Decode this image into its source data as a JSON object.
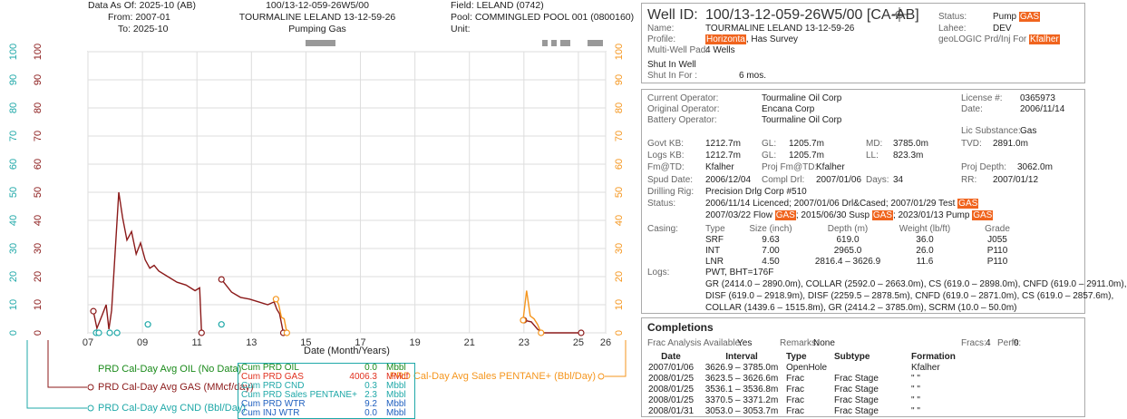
{
  "header": {
    "data_as_of": "Data As Of: 2025-10 (AB)",
    "from": "From: 2007-01",
    "to": "To: 2025-10",
    "uwi": "100/13-12-059-26W5/00",
    "well_name": "TOURMALINE LELAND 13-12-59-26",
    "status": "Pumping Gas",
    "field": "Field: LELAND (0742)",
    "pool": "Pool: COMMINGLED POOL 001 (0800160)",
    "unit": "Unit:"
  },
  "chart": {
    "type": "line",
    "xlabel": "Date (Month/Years)",
    "xlim": [
      2007,
      2026
    ],
    "xticks": [
      {
        "value": 2007,
        "label": "07"
      },
      {
        "value": 2009,
        "label": "09"
      },
      {
        "value": 2011,
        "label": "11"
      },
      {
        "value": 2013,
        "label": "13"
      },
      {
        "value": 2015,
        "label": "15"
      },
      {
        "value": 2017,
        "label": "17"
      },
      {
        "value": 2019,
        "label": "19"
      },
      {
        "value": 2021,
        "label": "21"
      },
      {
        "value": 2023,
        "label": "23"
      },
      {
        "value": 2025,
        "label": "25"
      },
      {
        "value": 2026,
        "label": "26"
      }
    ],
    "grid": true,
    "axes": [
      {
        "name": "cnd",
        "color": "#1fa8a8",
        "ylim": [
          0,
          100
        ],
        "yticks": [
          0,
          10,
          20,
          30,
          40,
          50,
          60,
          70,
          80,
          90,
          100
        ]
      },
      {
        "name": "gas",
        "color": "#8b1a1a",
        "ylim": [
          0,
          100
        ],
        "yticks": [
          0,
          10,
          20,
          30,
          40,
          50,
          60,
          70,
          80,
          90,
          100
        ]
      },
      {
        "name": "pentane",
        "color": "#f5961e",
        "ylim": [
          0,
          100
        ],
        "yticks": [
          0,
          10,
          20,
          30,
          40,
          50,
          60,
          70,
          80,
          90,
          100
        ]
      }
    ],
    "series": [
      {
        "name": "PRD Cal-Day Avg OIL (No Data)",
        "color": "#1a8a1a",
        "axis": "gas",
        "x": [],
        "values": []
      },
      {
        "name": "PRD Cal-Day Avg GAS (MMcf/day)",
        "color": "#8b1a1a",
        "axis": "gas",
        "x": [
          2007.2,
          2007.33,
          2007.53,
          2007.67,
          2007.77,
          2007.87,
          2008.13,
          2008.27,
          2008.43,
          2008.6,
          2008.77,
          2008.93,
          2009.1,
          2009.27,
          2009.43,
          2009.6,
          2009.93,
          2010.27,
          2010.6,
          2010.93,
          2011.1,
          2011.17,
          2011.5,
          2011.9,
          2012.27,
          2012.6,
          2012.93,
          2013.27,
          2013.6,
          2013.83,
          2013.93,
          2014.03,
          2014.17,
          2018,
          2023.0,
          2023.27,
          2023.5,
          2023.67,
          2023.93,
          2024.17,
          2025.1
        ],
        "values": [
          7.7,
          1.6,
          6.5,
          10,
          1.3,
          8,
          50,
          41,
          33,
          36,
          28,
          32,
          26,
          23,
          24,
          22,
          20,
          18,
          17,
          15,
          16,
          0,
          null,
          19,
          14.5,
          12.6,
          12,
          11,
          10,
          11,
          8.4,
          6.8,
          0,
          null,
          4.5,
          3.9,
          1.3,
          0,
          0,
          0,
          0
        ]
      },
      {
        "name": "PRD Cal-Day Avg CND (Bbl/Day)",
        "color": "#1fa8a8",
        "axis": "cnd",
        "line": false,
        "x": [
          2007.3,
          2007.4,
          2007.8,
          2008.07,
          2009.2,
          2011.9
        ],
        "values": [
          0,
          0,
          0,
          0,
          3,
          3
        ]
      },
      {
        "name": "PRD Cal-Day Avg Sales PENTANE+ (Bbl/Day)",
        "color": "#f5961e",
        "axis": "pentane",
        "x": [
          2013.9,
          2014.0,
          2014.1,
          2014.2,
          2014.3,
          2018,
          2022.97,
          2023.1,
          2023.23,
          2023.37,
          2023.5,
          2023.63
        ],
        "values": [
          12,
          10,
          5.5,
          5,
          0,
          null,
          4.5,
          15,
          6,
          5,
          3,
          0
        ]
      }
    ]
  },
  "cumulative": [
    {
      "label": "Cum PRD OIL",
      "value": "0.0",
      "unit": "Mbbl",
      "color": "#1a8a1a"
    },
    {
      "label": "Cum PRD GAS",
      "value": "4006.3",
      "unit": "MMcf",
      "color": "#e0301e"
    },
    {
      "label": "Cum PRD CND",
      "value": "0.3",
      "unit": "Mbbl",
      "color": "#1fa8a8"
    },
    {
      "label": "Cum PRD Sales PENTANE+",
      "value": "2.3",
      "unit": "Mbbl",
      "color": "#1fa8a8"
    },
    {
      "label": "Cum PRD WTR",
      "value": "9.2",
      "unit": "Mbbl",
      "color": "#1f5fbf"
    },
    {
      "label": "Cum INJ WTR",
      "value": "0.0",
      "unit": "Mbbl",
      "color": "#1f5fbf"
    }
  ],
  "well": {
    "id_label": "Well ID:",
    "id": "100/13-12-059-26W5/00 [CA-AB]",
    "name_label": "Name:",
    "name": "TOURMALINE LELAND 13-12-59-26",
    "profile_label": "Profile:",
    "profile": [
      {
        "text": "Horizonta",
        "highlight": true
      },
      {
        "text": ", Has Survey"
      }
    ],
    "pad_label": "Multi-Well Pad:",
    "pad": "4 Wells",
    "shut_in": "Shut In Well",
    "shut_in_for_label": "Shut In For :",
    "shut_in_for": "6 mos.",
    "status_label": "Status:",
    "status": [
      {
        "text": "Pump "
      },
      {
        "text": "GAS",
        "highlight": true
      }
    ],
    "lahee_label": "Lahee:",
    "lahee": "DEV",
    "prd_for": [
      {
        "text": "geoLOGIC Prd/Inj For "
      },
      {
        "text": "Kfalher",
        "highlight": true
      }
    ]
  },
  "details": {
    "current_operator": {
      "label": "Current Operator:",
      "value": "Tourmaline Oil Corp"
    },
    "original_operator": {
      "label": "Original Operator:",
      "value": "Encana Corp"
    },
    "battery_operator": {
      "label": "Battery Operator:",
      "value": "Tourmaline Oil Corp"
    },
    "license": {
      "label": "License #:",
      "value": "0365973"
    },
    "date": {
      "label": "Date:",
      "value": "2006/11/14"
    },
    "lic_substance": {
      "label": "Lic Substance:",
      "value": "Gas"
    },
    "govt_kb": {
      "label": "Govt KB:",
      "value": "1212.7m"
    },
    "gl_1": {
      "label": "GL:",
      "value": "1205.7m"
    },
    "md": {
      "label": "MD:",
      "value": "3785.0m"
    },
    "tvd": {
      "label": "TVD:",
      "value": "2891.0m"
    },
    "logs_kb": {
      "label": "Logs KB:",
      "value": "1212.7m"
    },
    "gl_2": {
      "label": "GL:",
      "value": "1205.7m"
    },
    "ll": {
      "label": "LL:",
      "value": "823.3m"
    },
    "fm_td": {
      "label": "Fm@TD:",
      "value": "Kfalher"
    },
    "proj_fm_td": {
      "label": "Proj Fm@TD:",
      "value": "Kfalher"
    },
    "proj_depth": {
      "label": "Proj Depth:",
      "value": "3062.0m"
    },
    "spud_date": {
      "label": "Spud Date:",
      "value": "2006/12/04"
    },
    "compl_drl": {
      "label": "Compl Drl:",
      "value": "2007/01/06"
    },
    "days": {
      "label": "Days:",
      "value": "34"
    },
    "rr": {
      "label": "RR:",
      "value": "2007/01/12"
    },
    "drilling_rig": {
      "label": "Drilling Rig:",
      "value": "Precision Drlg Corp #510"
    },
    "status": {
      "label": "Status:",
      "lines": [
        [
          {
            "text": "2006/11/14 Licenced; 2007/01/06 Drl&Cased; 2007/01/29 Test "
          },
          {
            "text": "GAS",
            "highlight": true
          }
        ],
        [
          {
            "text": "2007/03/22 Flow "
          },
          {
            "text": "GAS",
            "highlight": true
          },
          {
            "text": "; 2015/06/30 Susp "
          },
          {
            "text": "GAS",
            "highlight": true
          },
          {
            "text": "; 2023/01/13 Pump "
          },
          {
            "text": "GAS",
            "highlight": true
          }
        ]
      ]
    },
    "casing": {
      "label": "Casing:",
      "header": [
        "Type",
        "Size (inch)",
        "Depth (m)",
        "Weight (lb/ft)",
        "Grade"
      ],
      "rows": [
        [
          "SRF",
          "9.63",
          "619.0",
          "36.0",
          "J055"
        ],
        [
          "INT",
          "7.00",
          "2965.0",
          "26.0",
          "P110"
        ],
        [
          "LNR",
          "4.50",
          "2816.4 – 3626.9",
          "11.6",
          "P110"
        ]
      ]
    },
    "logs": {
      "label": "Logs:",
      "lines": [
        "PWT, BHT=176F",
        "GR (2414.0 – 2890.0m), COLLAR (2592.0 – 2663.0m), CS (619.0 – 2898.0m), CNFD (619.0 – 2911.0m),",
        "DISF (619.0 – 2918.9m), DISF (2259.5 – 2878.5m), CNFD (619.0 – 2871.0m), CS (619.0 – 2857.6m),",
        "COLLAR (1439.6 – 1515.8m), GR (2414.2 – 3785.0m), SCRM (10.0 – 50.0m)"
      ]
    }
  },
  "completions": {
    "title": "Completions",
    "frac_label": "Frac Analysis Available:",
    "frac": "Yes",
    "remarks_label": "Remarks:",
    "remarks": "None",
    "fracs_label": "Fracs:",
    "fracs": "4",
    "perfs_label": "Perfs:",
    "perfs": "0",
    "header": [
      "Date",
      "Interval",
      "Type",
      "Subtype",
      "Formation"
    ],
    "rows": [
      {
        "date": "2007/01/06",
        "interval": "3626.9 – 3785.0m",
        "type": "OpenHole",
        "formation": "Kfalher"
      },
      {
        "date": "2008/01/25",
        "interval": "3623.5 – 3626.6m",
        "type": "Frac",
        "subtype": "Frac Stage",
        "formation": "\" \""
      },
      {
        "date": "2008/01/25",
        "interval": "3536.1 – 3536.8m",
        "type": "Frac",
        "subtype": "Frac Stage",
        "formation": "\" \""
      },
      {
        "date": "2008/01/25",
        "interval": "3370.5 – 3371.2m",
        "type": "Frac",
        "subtype": "Frac Stage",
        "formation": "\" \""
      },
      {
        "date": "2008/01/31",
        "interval": "3053.0 – 3053.7m",
        "type": "Frac",
        "subtype": "Frac Stage",
        "formation": "\" \""
      }
    ]
  }
}
